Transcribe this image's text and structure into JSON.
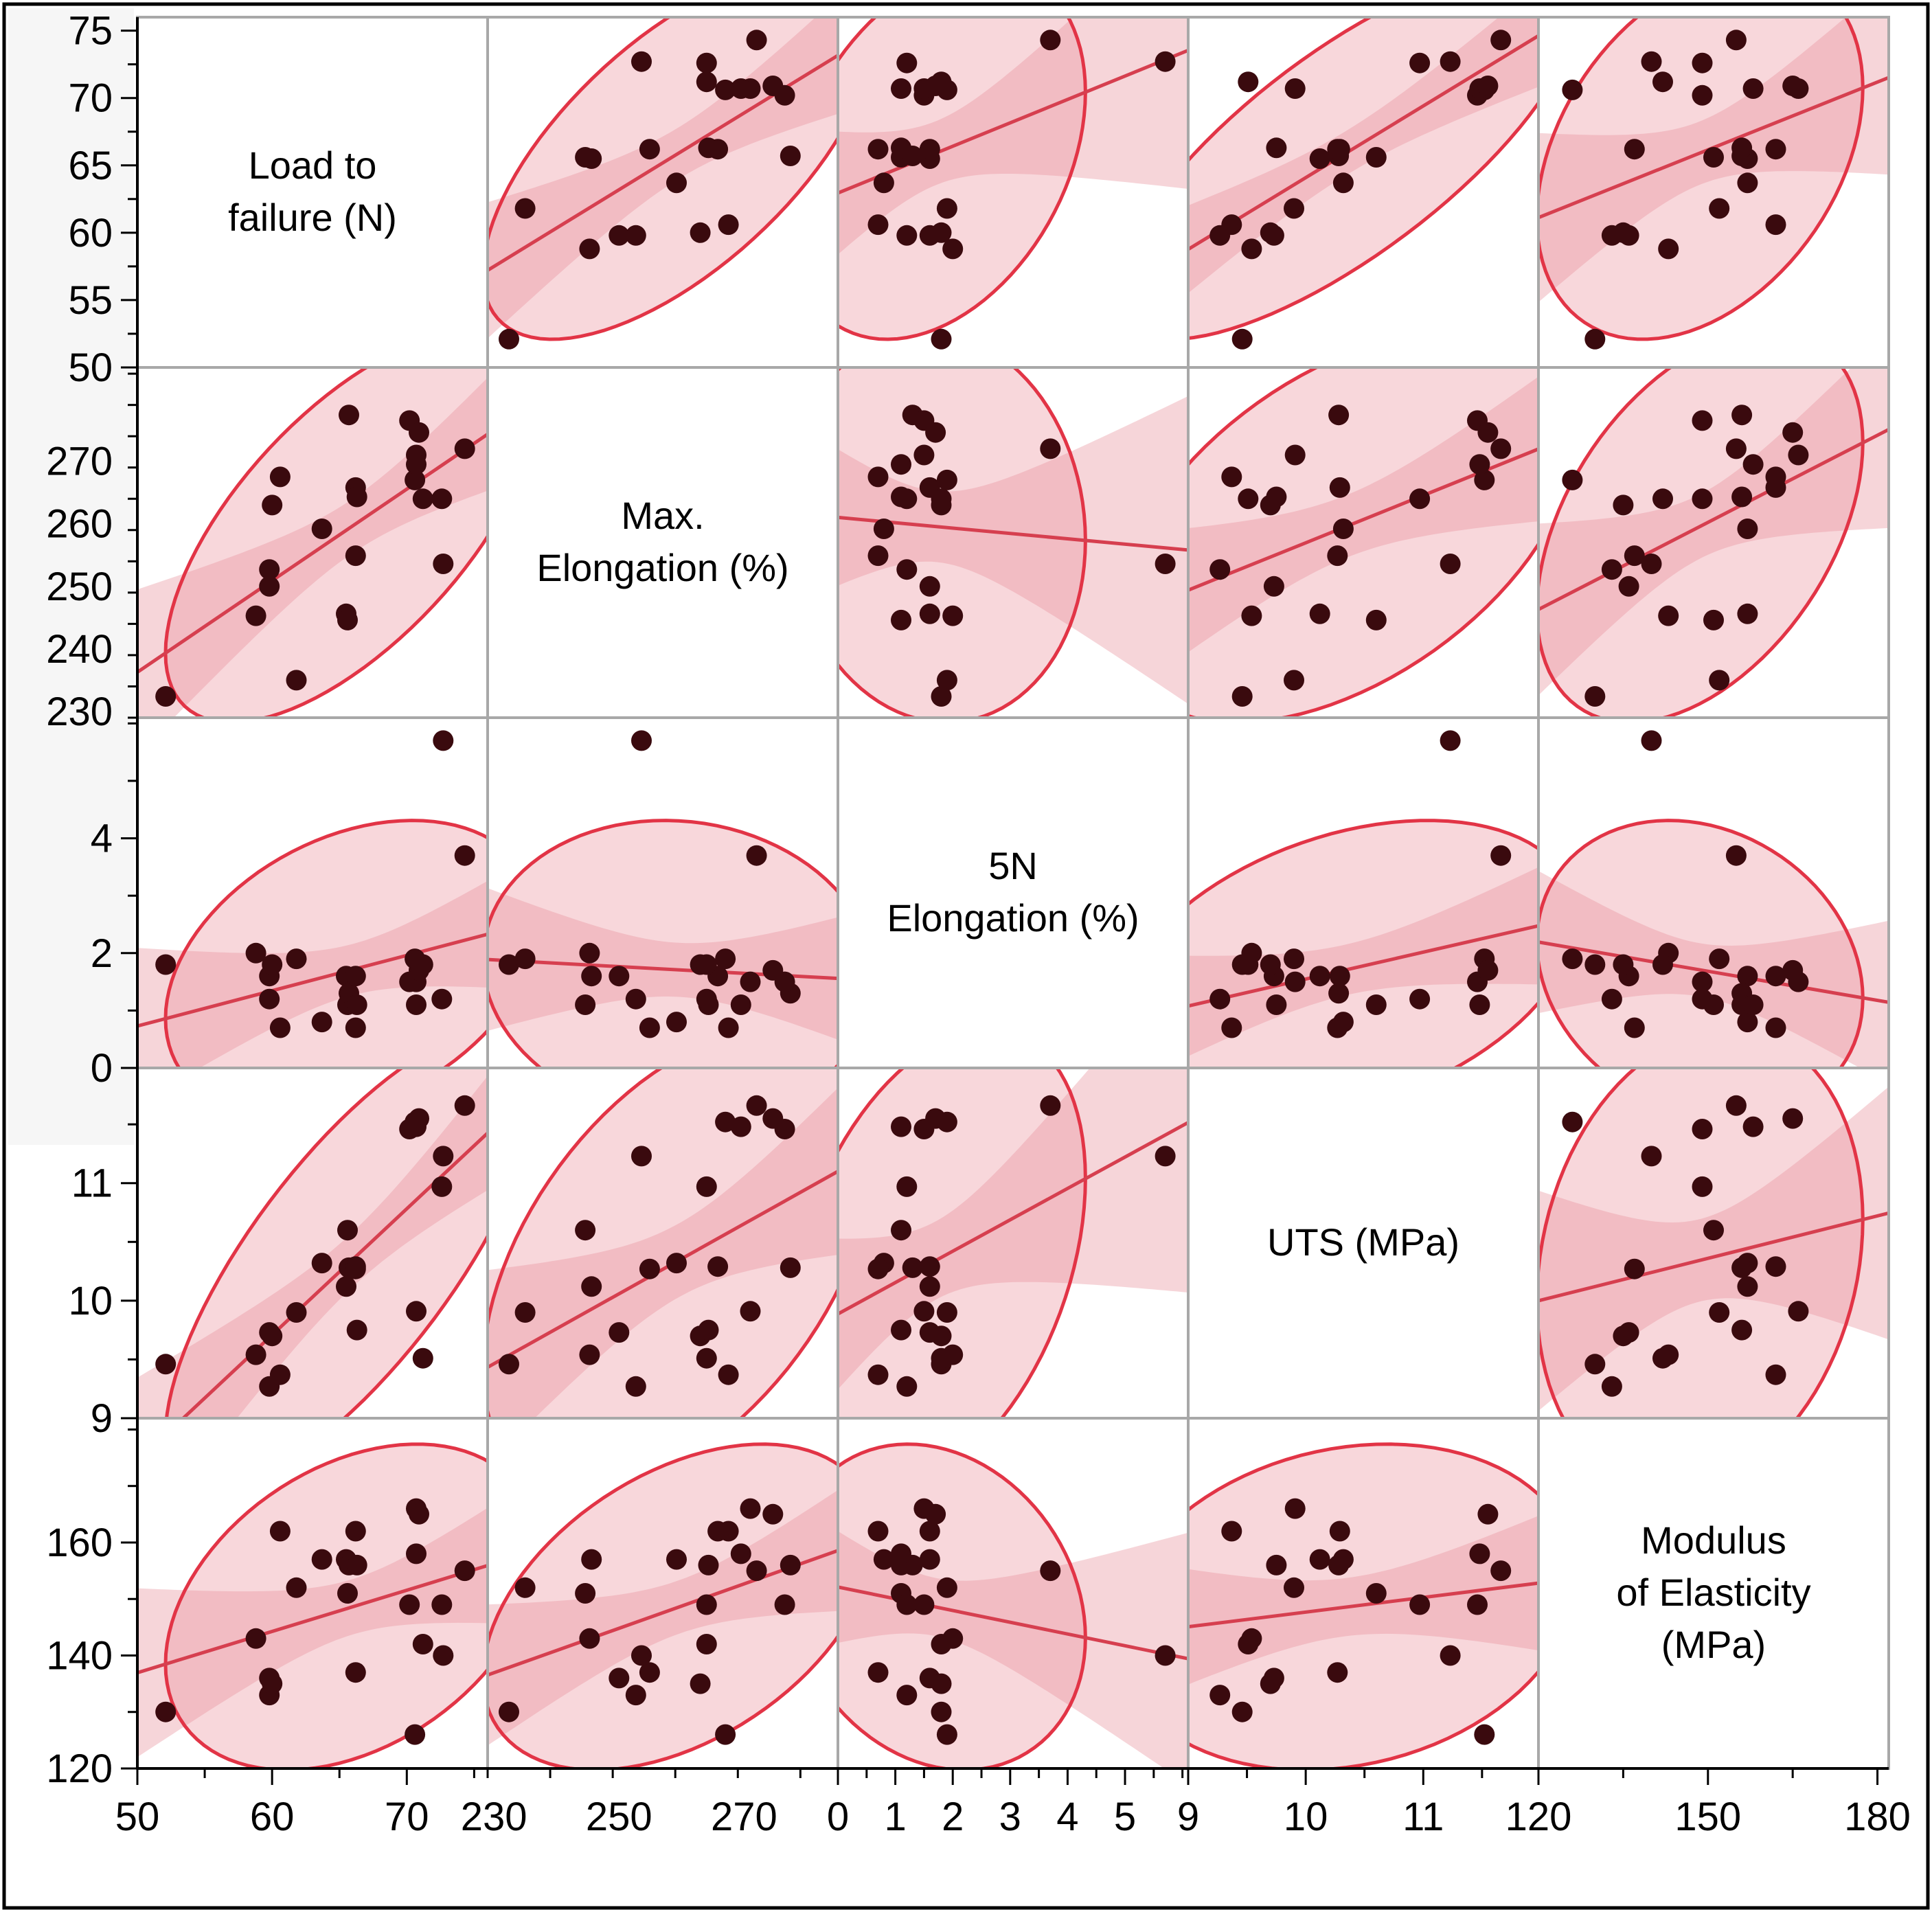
{
  "chart_data": {
    "type": "scatter-matrix",
    "variables": [
      {
        "key": "load",
        "label": [
          "Load to",
          "failure (N)"
        ],
        "range": [
          50,
          76
        ],
        "ticks": [
          50,
          55,
          60,
          65,
          70,
          75
        ],
        "x_ticks": [
          50,
          60,
          70
        ],
        "y_ticks": [
          50,
          55,
          60,
          65,
          70,
          75
        ]
      },
      {
        "key": "maxel",
        "label": [
          "Max.",
          "Elongation (%)"
        ],
        "range": [
          229,
          285
        ],
        "ticks": [
          230,
          250,
          270
        ],
        "x_ticks": [
          230,
          250,
          270
        ],
        "y_ticks": [
          230,
          240,
          250,
          260,
          270
        ]
      },
      {
        "key": "el5n",
        "label": [
          "5N",
          "Elongation (%)"
        ],
        "range": [
          0,
          6.1
        ],
        "ticks": [
          0,
          2,
          4
        ],
        "x_ticks": [
          0,
          1,
          2,
          3,
          4,
          5
        ],
        "y_ticks": [
          0,
          2,
          4
        ]
      },
      {
        "key": "uts",
        "label": [
          "UTS (MPa)"
        ],
        "range": [
          9,
          11.98
        ],
        "ticks": [
          9,
          10,
          11
        ],
        "x_ticks": [
          9,
          10,
          11
        ],
        "y_ticks": [
          9,
          10,
          11
        ]
      },
      {
        "key": "mod",
        "label": [
          "Modulus",
          "of Elasticity",
          "(MPa)"
        ],
        "range": [
          120,
          182
        ],
        "ticks": [
          120,
          140,
          160,
          180
        ],
        "x_ticks": [
          120,
          150,
          180
        ],
        "y_ticks": [
          120,
          140,
          160
        ]
      }
    ],
    "samples": [
      {
        "load": 52.1,
        "maxel": 232.4,
        "el5n": 1.8,
        "uts": 9.46,
        "mod": 130
      },
      {
        "load": 58.8,
        "maxel": 245.3,
        "el5n": 2.0,
        "uts": 9.54,
        "mod": 143
      },
      {
        "load": 59.8,
        "maxel": 250.0,
        "el5n": 1.6,
        "uts": 9.73,
        "mod": 136
      },
      {
        "load": 59.8,
        "maxel": 252.7,
        "el5n": 1.2,
        "uts": 9.27,
        "mod": 133
      },
      {
        "load": 60.0,
        "maxel": 263.0,
        "el5n": 1.8,
        "uts": 9.7,
        "mod": 135
      },
      {
        "load": 60.6,
        "maxel": 267.5,
        "el5n": 0.7,
        "uts": 9.37,
        "mod": 162
      },
      {
        "load": 61.8,
        "maxel": 235.0,
        "el5n": 1.9,
        "uts": 9.9,
        "mod": 152
      },
      {
        "load": 63.7,
        "maxel": 259.2,
        "el5n": 0.8,
        "uts": 10.32,
        "mod": 157
      },
      {
        "load": 65.5,
        "maxel": 245.6,
        "el5n": 1.6,
        "uts": 10.12,
        "mod": 157
      },
      {
        "load": 65.6,
        "maxel": 244.6,
        "el5n": 1.1,
        "uts": 10.6,
        "mod": 151
      },
      {
        "load": 65.7,
        "maxel": 277.4,
        "el5n": 1.3,
        "uts": 10.28,
        "mod": 156
      },
      {
        "load": 66.2,
        "maxel": 265.8,
        "el5n": 1.6,
        "uts": 10.29,
        "mod": 162
      },
      {
        "load": 66.3,
        "maxel": 264.3,
        "el5n": 1.1,
        "uts": 9.75,
        "mod": 156
      },
      {
        "load": 66.2,
        "maxel": 254.9,
        "el5n": 0.7,
        "uts": 10.27,
        "mod": 137
      },
      {
        "load": 70.2,
        "maxel": 276.5,
        "el5n": 1.5,
        "uts": 11.46,
        "mod": 149
      },
      {
        "load": 70.6,
        "maxel": 267.0,
        "el5n": 1.9,
        "uts": 11.52,
        "mod": 126
      },
      {
        "load": 70.7,
        "maxel": 271.0,
        "el5n": 1.5,
        "uts": 9.91,
        "mod": 166
      },
      {
        "load": 70.7,
        "maxel": 269.5,
        "el5n": 1.1,
        "uts": 11.48,
        "mod": 158
      },
      {
        "load": 70.9,
        "maxel": 274.6,
        "el5n": 1.7,
        "uts": 11.55,
        "mod": 165
      },
      {
        "load": 71.2,
        "maxel": 264.0,
        "el5n": 1.8,
        "uts": 9.51,
        "mod": 142
      },
      {
        "load": 72.6,
        "maxel": 264.0,
        "el5n": 1.2,
        "uts": 10.97,
        "mod": 149
      },
      {
        "load": 72.7,
        "maxel": 253.6,
        "el5n": 5.7,
        "uts": 11.23,
        "mod": 140
      },
      {
        "load": 74.3,
        "maxel": 272.0,
        "el5n": 3.7,
        "uts": 11.66,
        "mod": 155
      }
    ],
    "points_color": "#3a0a0e",
    "fit_line_color": "#d63f4f",
    "ellipse_color": "#e23446",
    "band_color": "#f2b6bd",
    "grid_border_color": "#a8a8a8"
  }
}
